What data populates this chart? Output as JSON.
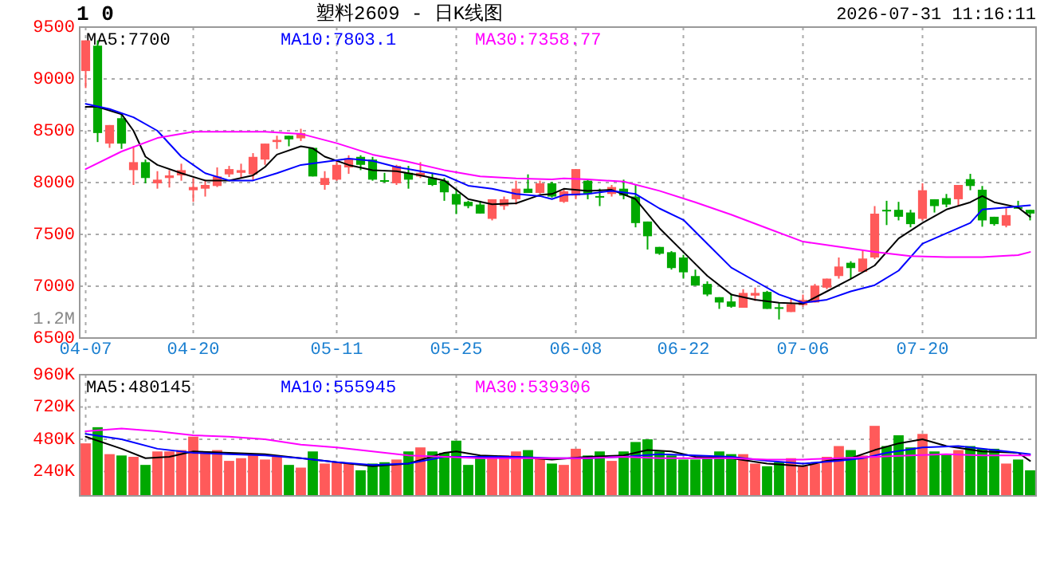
{
  "chart_data": [
    {
      "type": "candlestick",
      "title": "塑料2609 - 日K线图",
      "subtitle": "2026-07-31 11:16:11",
      "annotations": [
        "1 0",
        "1.2M"
      ],
      "categories": [
        "04-07",
        null,
        null,
        null,
        null,
        null,
        null,
        null,
        null,
        "04-20",
        null,
        null,
        null,
        null,
        null,
        null,
        null,
        null,
        null,
        null,
        null,
        "05-11",
        null,
        null,
        null,
        null,
        null,
        null,
        null,
        null,
        null,
        "05-25",
        null,
        null,
        null,
        null,
        null,
        null,
        null,
        null,
        null,
        "06-08",
        null,
        null,
        null,
        null,
        null,
        null,
        null,
        null,
        "06-22",
        null,
        null,
        null,
        null,
        null,
        null,
        null,
        null,
        null,
        "07-06",
        null,
        null,
        null,
        null,
        null,
        null,
        null,
        null,
        null,
        "07-20",
        null,
        null,
        null,
        null,
        null,
        null,
        null,
        null,
        null
      ],
      "ohlc": [
        [
          9076,
          9372,
          8912,
          9372
        ],
        [
          9321,
          9372,
          8391,
          8478
        ],
        [
          8376,
          8555,
          8335,
          8555
        ],
        [
          8621,
          8657,
          8325,
          8376
        ],
        [
          8120,
          8350,
          7977,
          8197
        ],
        [
          8197,
          8222,
          7993,
          8044
        ],
        [
          7993,
          8110,
          7941,
          8028
        ],
        [
          8044,
          8120,
          7952,
          8069
        ],
        [
          8069,
          8182,
          8018,
          8120
        ],
        [
          7926,
          8044,
          7814,
          7957
        ],
        [
          7941,
          8028,
          7865,
          7977
        ],
        [
          7967,
          8146,
          7957,
          8059
        ],
        [
          8079,
          8161,
          8054,
          8130
        ],
        [
          8094,
          8182,
          8044,
          8120
        ],
        [
          8079,
          8284,
          8018,
          8248
        ],
        [
          8222,
          8376,
          8171,
          8376
        ],
        [
          8391,
          8452,
          8325,
          8412
        ],
        [
          8452,
          8452,
          8350,
          8417
        ],
        [
          8427,
          8519,
          8401,
          8478
        ],
        [
          8335,
          8335,
          8059,
          8059
        ],
        [
          7977,
          8110,
          7931,
          8044
        ],
        [
          8028,
          8212,
          8018,
          8171
        ],
        [
          8146,
          8263,
          8084,
          8233
        ],
        [
          8248,
          8263,
          8120,
          8171
        ],
        [
          8222,
          8248,
          8018,
          8028
        ],
        [
          8023,
          8094,
          7998,
          8013
        ],
        [
          7993,
          8171,
          7977,
          8161
        ],
        [
          8094,
          8161,
          7941,
          8028
        ],
        [
          8059,
          8197,
          8044,
          8094
        ],
        [
          8044,
          8094,
          7967,
          7977
        ],
        [
          8018,
          8044,
          7824,
          7906
        ],
        [
          7890,
          7941,
          7696,
          7788
        ],
        [
          7814,
          7824,
          7752,
          7773
        ],
        [
          7788,
          7824,
          7701,
          7701
        ],
        [
          7650,
          7839,
          7635,
          7839
        ],
        [
          7773,
          7865,
          7737,
          7839
        ],
        [
          7839,
          8018,
          7788,
          7941
        ],
        [
          7941,
          8079,
          7900,
          7900
        ],
        [
          7900,
          8018,
          7890,
          7993
        ],
        [
          7993,
          8008,
          7855,
          7865
        ],
        [
          7814,
          7941,
          7804,
          7916
        ],
        [
          7875,
          8130,
          7839,
          8130
        ],
        [
          8018,
          8028,
          7839,
          7890
        ],
        [
          7870,
          7941,
          7773,
          7860
        ],
        [
          7890,
          7977,
          7865,
          7957
        ],
        [
          7941,
          8028,
          7839,
          7875
        ],
        [
          7865,
          7977,
          7568,
          7609
        ],
        [
          7624,
          7624,
          7354,
          7482
        ],
        [
          7379,
          7379,
          7303,
          7313
        ],
        [
          7328,
          7339,
          7160,
          7175
        ],
        [
          7277,
          7303,
          7073,
          7134
        ],
        [
          7098,
          7160,
          7006,
          7006
        ],
        [
          7022,
          7047,
          6904,
          6920
        ],
        [
          6894,
          6894,
          6781,
          6843
        ],
        [
          6853,
          6930,
          6792,
          6802
        ],
        [
          6792,
          6971,
          6792,
          6935
        ],
        [
          6909,
          6986,
          6858,
          6935
        ],
        [
          6945,
          6955,
          6781,
          6781
        ],
        [
          6797,
          6843,
          6679,
          6792
        ],
        [
          6751,
          6878,
          6751,
          6827
        ],
        [
          6817,
          6919,
          6802,
          6868
        ],
        [
          6843,
          7022,
          6843,
          7006
        ],
        [
          6986,
          7073,
          6971,
          7073
        ],
        [
          7098,
          7277,
          7073,
          7190
        ],
        [
          7226,
          7241,
          7073,
          7175
        ],
        [
          7139,
          7354,
          7139,
          7267
        ],
        [
          7277,
          7773,
          7262,
          7700
        ],
        [
          7737,
          7824,
          7590,
          7722
        ],
        [
          7737,
          7814,
          7635,
          7670
        ],
        [
          7711,
          7737,
          7568,
          7599
        ],
        [
          7650,
          7993,
          7635,
          7926
        ],
        [
          7839,
          7839,
          7711,
          7773
        ],
        [
          7850,
          7890,
          7762,
          7788
        ],
        [
          7839,
          7977,
          7773,
          7977
        ],
        [
          8033,
          8084,
          7926,
          7967
        ],
        [
          7931,
          7967,
          7574,
          7635
        ],
        [
          7670,
          7670,
          7584,
          7599
        ],
        [
          7584,
          7752,
          7568,
          7686
        ],
        [
          7763,
          7824,
          7752,
          7752
        ],
        [
          7737,
          7737,
          7635,
          7701
        ]
      ],
      "colors": [
        "#ff5a5a",
        "#00a800",
        "#ff5a5a",
        "#00a800",
        "#ff5a5a",
        "#00a800",
        "#ff5a5a",
        "#ff5a5a",
        "#ff5a5a",
        "#ff5a5a",
        "#ff5a5a",
        "#ff5a5a",
        "#ff5a5a",
        "#ff5a5a",
        "#ff5a5a",
        "#ff5a5a",
        "#ff5a5a",
        "#00a800",
        "#ff5a5a",
        "#00a800",
        "#ff5a5a",
        "#ff5a5a",
        "#ff5a5a",
        "#00a800",
        "#00a800",
        "#00a800",
        "#ff5a5a",
        "#00a800",
        "#ff5a5a",
        "#00a800",
        "#00a800",
        "#00a800",
        "#00a800",
        "#00a800",
        "#ff5a5a",
        "#ff5a5a",
        "#ff5a5a",
        "#00a800",
        "#ff5a5a",
        "#00a800",
        "#ff5a5a",
        "#ff5a5a",
        "#00a800",
        "#00a800",
        "#ff5a5a",
        "#00a800",
        "#00a800",
        "#00a800",
        "#00a800",
        "#00a800",
        "#00a800",
        "#00a800",
        "#00a800",
        "#00a800",
        "#00a800",
        "#ff5a5a",
        "#ff5a5a",
        "#00a800",
        "#00a800",
        "#ff5a5a",
        "#ff5a5a",
        "#ff5a5a",
        "#ff5a5a",
        "#ff5a5a",
        "#00a800",
        "#ff5a5a",
        "#ff5a5a",
        "#00a800",
        "#00a800",
        "#00a800",
        "#ff5a5a",
        "#00a800",
        "#00a800",
        "#ff5a5a",
        "#00a800",
        "#00a800",
        "#00a800",
        "#ff5a5a",
        "#00a800",
        "#00a800"
      ],
      "series": [
        {
          "type": "line",
          "name": "MA5:7700",
          "color": "#000000",
          "values": [
            8730,
            8730,
            null,
            8660,
            8500,
            8250,
            8170,
            null,
            8090,
            null,
            8020,
            null,
            8020,
            null,
            8070,
            8150,
            8270,
            null,
            8350,
            8330,
            8250,
            null,
            8170,
            null,
            8120,
            null,
            8110,
            null,
            8070,
            null,
            8020,
            null,
            7840,
            null,
            7790,
            null,
            7800,
            null,
            7880,
            7890,
            7940,
            null,
            7920,
            null,
            7930,
            null,
            7840,
            null,
            7560,
            null,
            7330,
            null,
            7100,
            null,
            6920,
            null,
            6870,
            null,
            6840,
            null,
            6830,
            null,
            6950,
            null,
            7070,
            null,
            7200,
            null,
            7460,
            null,
            7610,
            null,
            7740,
            null,
            7810,
            7870,
            7810,
            null,
            7760,
            7670
          ]
        },
        {
          "type": "line",
          "name": "MA10:7803.1",
          "color": "#0000ff",
          "values": [
            8760,
            null,
            8710,
            null,
            8630,
            null,
            8500,
            null,
            8250,
            null,
            8090,
            null,
            8020,
            null,
            8020,
            null,
            8090,
            null,
            8170,
            null,
            8200,
            null,
            8230,
            null,
            8210,
            null,
            8150,
            null,
            8110,
            null,
            8070,
            null,
            7970,
            null,
            7940,
            null,
            7890,
            null,
            7870,
            7840,
            7880,
            null,
            7890,
            null,
            7920,
            null,
            7890,
            null,
            7750,
            null,
            7640,
            null,
            7410,
            null,
            7180,
            null,
            7050,
            null,
            6920,
            null,
            6840,
            null,
            6870,
            null,
            6950,
            null,
            7010,
            null,
            7150,
            null,
            7410,
            null,
            7510,
            null,
            7610,
            7740,
            null,
            7760,
            null,
            7780
          ]
        },
        {
          "type": "line",
          "name": "MA30:7358.77",
          "color": "#ff00ff",
          "values": [
            8130,
            null,
            null,
            8300,
            null,
            null,
            8430,
            null,
            null,
            8490,
            null,
            null,
            8490,
            null,
            null,
            8490,
            null,
            null,
            8470,
            null,
            null,
            8380,
            null,
            null,
            8270,
            null,
            null,
            8200,
            null,
            null,
            8120,
            null,
            null,
            8060,
            null,
            null,
            8040,
            null,
            null,
            8030,
            8040,
            null,
            8030,
            null,
            null,
            8010,
            null,
            null,
            7920,
            null,
            null,
            7810,
            null,
            null,
            7690,
            null,
            null,
            7560,
            null,
            null,
            7430,
            null,
            null,
            7380,
            null,
            null,
            7330,
            null,
            null,
            7290,
            null,
            null,
            7280,
            null,
            null,
            7280,
            null,
            null,
            7300,
            7330
          ]
        }
      ],
      "ylim": [
        6500,
        9500
      ],
      "yticks": [
        6500,
        7000,
        7500,
        8000,
        8500,
        9000,
        9500
      ],
      "grid": true,
      "legend": "top"
    },
    {
      "type": "bar",
      "categories": [
        null,
        null,
        null,
        null,
        null,
        null,
        null,
        null,
        null,
        null,
        null,
        null,
        null,
        null,
        null,
        null,
        null,
        null,
        null,
        null,
        null,
        null,
        null,
        null,
        null,
        null,
        null,
        null,
        null,
        null,
        null,
        null,
        null,
        null,
        null,
        null,
        null,
        null,
        null,
        null,
        null,
        null,
        null,
        null,
        null,
        null,
        null,
        null,
        null,
        null,
        null,
        null,
        null,
        null,
        null,
        null,
        null,
        null,
        null,
        null,
        null,
        null,
        null,
        null,
        null,
        null,
        null,
        null,
        null,
        null,
        null,
        null,
        null,
        null,
        null,
        null,
        null,
        null,
        null,
        null
      ],
      "values": [
        450000,
        570000,
        370000,
        360000,
        350000,
        290000,
        390000,
        390000,
        400000,
        500000,
        390000,
        400000,
        320000,
        340000,
        370000,
        330000,
        350000,
        290000,
        270000,
        390000,
        300000,
        310000,
        300000,
        250000,
        300000,
        310000,
        330000,
        390000,
        420000,
        390000,
        380000,
        470000,
        290000,
        340000,
        350000,
        360000,
        390000,
        400000,
        340000,
        300000,
        290000,
        410000,
        360000,
        390000,
        320000,
        390000,
        460000,
        480000,
        390000,
        360000,
        330000,
        330000,
        340000,
        390000,
        370000,
        370000,
        300000,
        280000,
        310000,
        340000,
        280000,
        300000,
        350000,
        430000,
        400000,
        360000,
        580000,
        430000,
        510000,
        420000,
        520000,
        390000,
        370000,
        400000,
        430000,
        410000,
        410000,
        300000,
        330000,
        250000
      ],
      "colors": [
        "#ff5a5a",
        "#00a800",
        "#ff5a5a",
        "#00a800",
        "#ff5a5a",
        "#00a800",
        "#ff5a5a",
        "#ff5a5a",
        "#ff5a5a",
        "#ff5a5a",
        "#ff5a5a",
        "#ff5a5a",
        "#ff5a5a",
        "#ff5a5a",
        "#ff5a5a",
        "#ff5a5a",
        "#ff5a5a",
        "#00a800",
        "#ff5a5a",
        "#00a800",
        "#ff5a5a",
        "#ff5a5a",
        "#ff5a5a",
        "#00a800",
        "#00a800",
        "#00a800",
        "#ff5a5a",
        "#00a800",
        "#ff5a5a",
        "#00a800",
        "#00a800",
        "#00a800",
        "#00a800",
        "#00a800",
        "#ff5a5a",
        "#ff5a5a",
        "#ff5a5a",
        "#00a800",
        "#ff5a5a",
        "#00a800",
        "#ff5a5a",
        "#ff5a5a",
        "#00a800",
        "#00a800",
        "#ff5a5a",
        "#00a800",
        "#00a800",
        "#00a800",
        "#00a800",
        "#00a800",
        "#00a800",
        "#00a800",
        "#00a800",
        "#00a800",
        "#00a800",
        "#ff5a5a",
        "#ff5a5a",
        "#00a800",
        "#00a800",
        "#ff5a5a",
        "#ff5a5a",
        "#ff5a5a",
        "#ff5a5a",
        "#ff5a5a",
        "#00a800",
        "#ff5a5a",
        "#ff5a5a",
        "#00a800",
        "#00a800",
        "#00a800",
        "#ff5a5a",
        "#00a800",
        "#00a800",
        "#ff5a5a",
        "#00a800",
        "#00a800",
        "#00a800",
        "#ff5a5a",
        "#00a800",
        "#00a800"
      ],
      "series": [
        {
          "type": "line",
          "name": "MA5:480145",
          "color": "#000000",
          "values": [
            500000,
            null,
            null,
            410000,
            null,
            340000,
            null,
            350000,
            null,
            390000,
            null,
            null,
            380000,
            null,
            null,
            370000,
            null,
            null,
            340000,
            null,
            null,
            310000,
            null,
            null,
            280000,
            null,
            null,
            300000,
            null,
            null,
            380000,
            390000,
            null,
            360000,
            null,
            null,
            350000,
            null,
            null,
            330000,
            null,
            null,
            350000,
            null,
            null,
            360000,
            null,
            400000,
            null,
            390000,
            null,
            350000,
            null,
            null,
            340000,
            null,
            null,
            300000,
            null,
            null,
            280000,
            null,
            320000,
            null,
            340000,
            null,
            400000,
            null,
            450000,
            null,
            480000,
            null,
            430000,
            null,
            null,
            390000,
            null,
            null,
            380000,
            320000
          ]
        },
        {
          "type": "line",
          "name": "MA10:555945",
          "color": "#0000ff",
          "values": [
            520000,
            null,
            null,
            480000,
            null,
            null,
            410000,
            null,
            null,
            380000,
            null,
            null,
            370000,
            null,
            null,
            360000,
            null,
            null,
            340000,
            null,
            null,
            310000,
            null,
            null,
            290000,
            null,
            null,
            300000,
            null,
            null,
            350000,
            null,
            null,
            350000,
            null,
            null,
            350000,
            null,
            null,
            340000,
            null,
            null,
            340000,
            null,
            null,
            350000,
            null,
            null,
            370000,
            null,
            null,
            360000,
            null,
            null,
            350000,
            null,
            null,
            320000,
            null,
            null,
            300000,
            null,
            null,
            320000,
            null,
            340000,
            null,
            380000,
            null,
            null,
            420000,
            null,
            null,
            430000,
            null,
            null,
            400000,
            null,
            null,
            370000
          ]
        },
        {
          "type": "line",
          "name": "MA30:539306",
          "color": "#ff00ff",
          "values": [
            540000,
            null,
            null,
            560000,
            null,
            null,
            540000,
            null,
            null,
            510000,
            null,
            null,
            500000,
            null,
            null,
            480000,
            null,
            null,
            440000,
            null,
            null,
            420000,
            null,
            null,
            390000,
            null,
            null,
            360000,
            null,
            null,
            350000,
            null,
            null,
            340000,
            null,
            null,
            340000,
            null,
            null,
            340000,
            null,
            null,
            340000,
            null,
            null,
            350000,
            null,
            null,
            340000,
            null,
            null,
            340000,
            null,
            null,
            340000,
            null,
            null,
            330000,
            null,
            null,
            330000,
            null,
            null,
            340000,
            null,
            null,
            350000,
            null,
            null,
            360000,
            null,
            null,
            370000,
            null,
            null,
            360000,
            null,
            null,
            null,
            360000
          ]
        }
      ],
      "ylim": [
        60000,
        960000
      ],
      "yticks": [
        {
          "value": 240000,
          "label": "240K"
        },
        {
          "value": 480000,
          "label": "480K"
        },
        {
          "value": 720000,
          "label": "720K"
        },
        {
          "value": 960000,
          "label": "960K"
        }
      ],
      "grid": true,
      "legend": "top",
      "tick_labels": "y"
    }
  ]
}
